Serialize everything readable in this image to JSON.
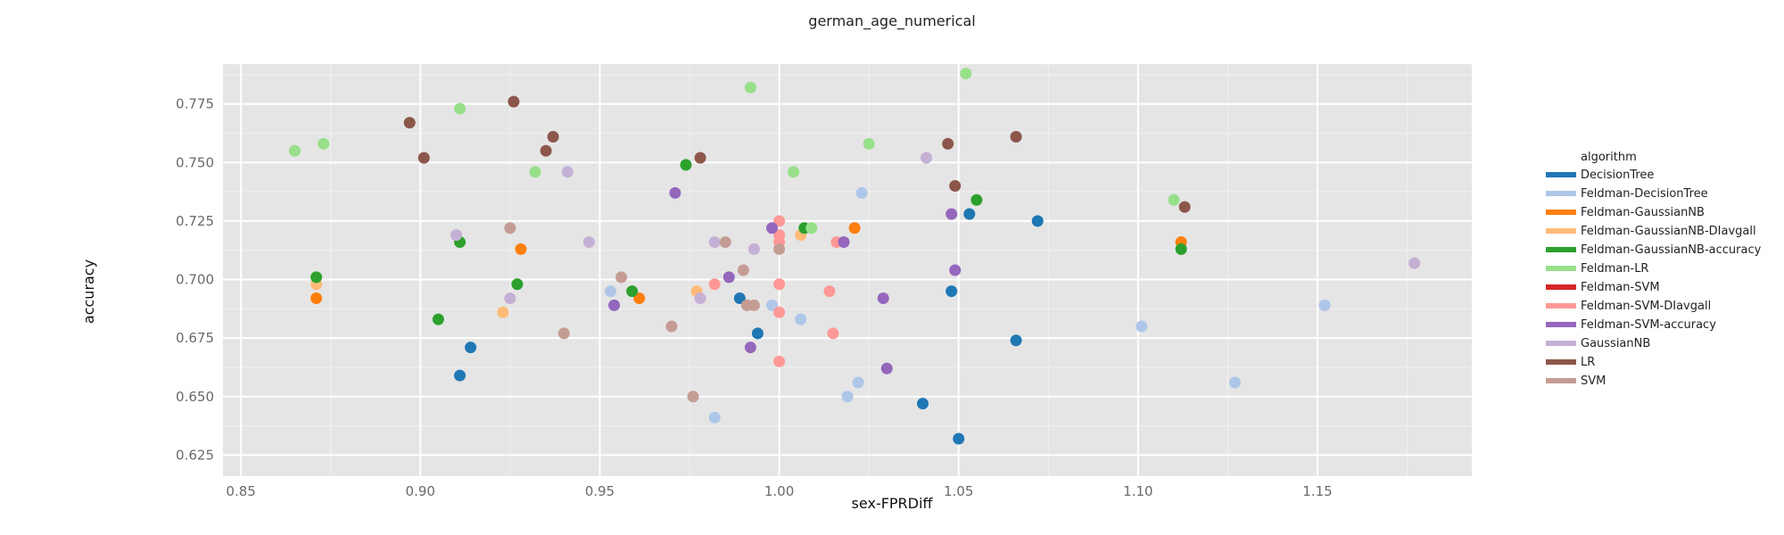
{
  "chart_data": {
    "type": "scatter",
    "title": "german_age_numerical",
    "xlabel": "sex-FPRDiff",
    "ylabel": "accuracy",
    "xlim": [
      0.845,
      1.193
    ],
    "ylim": [
      0.616,
      0.792
    ],
    "xticks": [
      "0.85",
      "0.90",
      "0.95",
      "1.00",
      "1.05",
      "1.10",
      "1.15"
    ],
    "yticks": [
      "0.625",
      "0.650",
      "0.675",
      "0.700",
      "0.725",
      "0.750",
      "0.775"
    ],
    "grid": true,
    "legend_title": "algorithm",
    "legend_position": "right",
    "series": [
      {
        "name": "DecisionTree",
        "color": "#1f77b4",
        "points": [
          [
            0.911,
            0.659
          ],
          [
            0.914,
            0.671
          ],
          [
            0.989,
            0.692
          ],
          [
            0.994,
            0.677
          ],
          [
            1.04,
            0.647
          ],
          [
            1.048,
            0.695
          ],
          [
            1.05,
            0.632
          ],
          [
            1.053,
            0.728
          ],
          [
            1.066,
            0.674
          ],
          [
            1.072,
            0.725
          ]
        ]
      },
      {
        "name": "Feldman-DecisionTree",
        "color": "#aec7e8",
        "points": [
          [
            0.953,
            0.695
          ],
          [
            0.982,
            0.641
          ],
          [
            0.998,
            0.689
          ],
          [
            1.006,
            0.683
          ],
          [
            1.019,
            0.65
          ],
          [
            1.022,
            0.656
          ],
          [
            1.023,
            0.737
          ],
          [
            1.101,
            0.68
          ],
          [
            1.127,
            0.656
          ],
          [
            1.152,
            0.689
          ]
        ]
      },
      {
        "name": "Feldman-GaussianNB",
        "color": "#ff7f0e",
        "points": [
          [
            0.871,
            0.692
          ],
          [
            0.928,
            0.713
          ],
          [
            0.961,
            0.692
          ],
          [
            1.021,
            0.722
          ],
          [
            1.112,
            0.716
          ]
        ]
      },
      {
        "name": "Feldman-GaussianNB-DIavgall",
        "color": "#ffbb78",
        "points": [
          [
            0.871,
            0.698
          ],
          [
            0.923,
            0.686
          ],
          [
            0.977,
            0.695
          ],
          [
            1.006,
            0.719
          ]
        ]
      },
      {
        "name": "Feldman-GaussianNB-accuracy",
        "color": "#2ca02c",
        "points": [
          [
            0.871,
            0.701
          ],
          [
            0.905,
            0.683
          ],
          [
            0.911,
            0.716
          ],
          [
            0.927,
            0.698
          ],
          [
            0.959,
            0.695
          ],
          [
            0.974,
            0.749
          ],
          [
            1.007,
            0.722
          ],
          [
            1.055,
            0.734
          ],
          [
            1.112,
            0.713
          ]
        ]
      },
      {
        "name": "Feldman-LR",
        "color": "#98df8a",
        "points": [
          [
            0.865,
            0.755
          ],
          [
            0.873,
            0.758
          ],
          [
            0.911,
            0.773
          ],
          [
            0.932,
            0.746
          ],
          [
            0.992,
            0.782
          ],
          [
            1.004,
            0.746
          ],
          [
            1.009,
            0.722
          ],
          [
            1.025,
            0.758
          ],
          [
            1.052,
            0.788
          ],
          [
            1.11,
            0.734
          ]
        ]
      },
      {
        "name": "Feldman-SVM",
        "color": "#d62728",
        "points": []
      },
      {
        "name": "Feldman-SVM-DIavgall",
        "color": "#ff9896",
        "points": [
          [
            0.982,
            0.698
          ],
          [
            1.0,
            0.725
          ],
          [
            1.0,
            0.719
          ],
          [
            1.0,
            0.716
          ],
          [
            1.0,
            0.698
          ],
          [
            1.0,
            0.686
          ],
          [
            1.0,
            0.665
          ],
          [
            1.014,
            0.695
          ],
          [
            1.015,
            0.677
          ],
          [
            1.016,
            0.716
          ]
        ]
      },
      {
        "name": "Feldman-SVM-accuracy",
        "color": "#9467bd",
        "points": [
          [
            0.954,
            0.689
          ],
          [
            0.971,
            0.737
          ],
          [
            0.986,
            0.701
          ],
          [
            0.992,
            0.671
          ],
          [
            0.998,
            0.722
          ],
          [
            1.018,
            0.716
          ],
          [
            1.029,
            0.692
          ],
          [
            1.03,
            0.662
          ],
          [
            1.048,
            0.728
          ],
          [
            1.049,
            0.704
          ]
        ]
      },
      {
        "name": "GaussianNB",
        "color": "#c5b0d5",
        "points": [
          [
            0.91,
            0.719
          ],
          [
            0.925,
            0.692
          ],
          [
            0.941,
            0.746
          ],
          [
            0.947,
            0.716
          ],
          [
            0.978,
            0.692
          ],
          [
            0.982,
            0.716
          ],
          [
            0.993,
            0.713
          ],
          [
            1.041,
            0.752
          ],
          [
            1.177,
            0.707
          ]
        ]
      },
      {
        "name": "LR",
        "color": "#8c564b",
        "points": [
          [
            0.897,
            0.767
          ],
          [
            0.901,
            0.752
          ],
          [
            0.926,
            0.776
          ],
          [
            0.935,
            0.755
          ],
          [
            0.937,
            0.761
          ],
          [
            0.978,
            0.752
          ],
          [
            1.047,
            0.758
          ],
          [
            1.049,
            0.74
          ],
          [
            1.066,
            0.761
          ],
          [
            1.113,
            0.731
          ]
        ]
      },
      {
        "name": "SVM",
        "color": "#c49c94",
        "points": [
          [
            0.925,
            0.722
          ],
          [
            0.94,
            0.677
          ],
          [
            0.956,
            0.701
          ],
          [
            0.97,
            0.68
          ],
          [
            0.976,
            0.65
          ],
          [
            0.985,
            0.716
          ],
          [
            0.99,
            0.704
          ],
          [
            0.991,
            0.689
          ],
          [
            0.993,
            0.689
          ],
          [
            1.0,
            0.713
          ]
        ]
      }
    ]
  }
}
